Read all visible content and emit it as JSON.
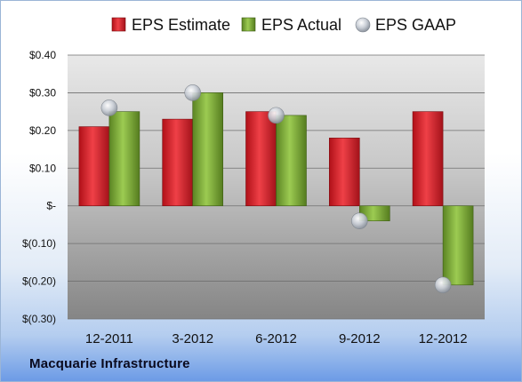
{
  "company": "Macquarie Infrastructure",
  "colors": {
    "estimate": "#d9242b",
    "actual": "#76a12f",
    "gaap": "#b8bfc8"
  },
  "chart_data": {
    "type": "bar",
    "categories": [
      "12-2011",
      "3-2012",
      "6-2012",
      "9-2012",
      "12-2012"
    ],
    "series": [
      {
        "name": "EPS Estimate",
        "values": [
          0.21,
          0.23,
          0.25,
          0.18,
          0.25
        ]
      },
      {
        "name": "EPS Actual",
        "values": [
          0.25,
          0.3,
          0.24,
          -0.04,
          -0.21
        ]
      },
      {
        "name": "EPS GAAP",
        "type": "scatter",
        "values": [
          0.26,
          0.3,
          0.24,
          -0.04,
          -0.21
        ]
      }
    ],
    "ylim": [
      -0.3,
      0.4
    ],
    "yticks": [
      0.4,
      0.3,
      0.2,
      0.1,
      0,
      -0.1,
      -0.2,
      -0.3
    ],
    "ytick_labels": [
      "$0.40",
      "$0.30",
      "$0.20",
      "$0.10",
      "$-",
      "$(0.10)",
      "$(0.20)",
      "$(0.30)"
    ],
    "grid": true,
    "legend": "top"
  }
}
